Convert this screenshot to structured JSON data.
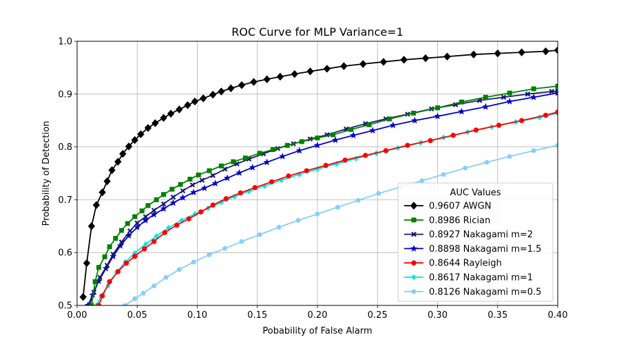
{
  "chart_data": {
    "type": "line",
    "title": "ROC Curve for MLP Variance=1",
    "xlabel": "Pobability of False Alarm",
    "ylabel": "Probability of Detection",
    "xlim": [
      0.0,
      0.4
    ],
    "ylim": [
      0.5,
      1.0
    ],
    "xticks": [
      "0.00",
      "0.05",
      "0.10",
      "0.15",
      "0.20",
      "0.25",
      "0.30",
      "0.35",
      "0.40"
    ],
    "yticks": [
      "0.5",
      "0.6",
      "0.7",
      "0.8",
      "0.9",
      "1.0"
    ],
    "grid": true,
    "legend": {
      "title": "AUC Values",
      "placement": "lower-right"
    },
    "series": [
      {
        "name": "0.9607 AWGN",
        "color": "#000000",
        "marker": "diamond",
        "points": [
          [
            0.005,
            0.516
          ],
          [
            0.008,
            0.58
          ],
          [
            0.012,
            0.65
          ],
          [
            0.016,
            0.69
          ],
          [
            0.021,
            0.714
          ],
          [
            0.025,
            0.735
          ],
          [
            0.029,
            0.756
          ],
          [
            0.034,
            0.772
          ],
          [
            0.038,
            0.787
          ],
          [
            0.043,
            0.801
          ],
          [
            0.048,
            0.813
          ],
          [
            0.053,
            0.824
          ],
          [
            0.059,
            0.836
          ],
          [
            0.065,
            0.845
          ],
          [
            0.072,
            0.855
          ],
          [
            0.078,
            0.863
          ],
          [
            0.085,
            0.871
          ],
          [
            0.092,
            0.879
          ],
          [
            0.098,
            0.886
          ],
          [
            0.105,
            0.892
          ],
          [
            0.113,
            0.899
          ],
          [
            0.12,
            0.905
          ],
          [
            0.128,
            0.911
          ],
          [
            0.137,
            0.917
          ],
          [
            0.147,
            0.923
          ],
          [
            0.158,
            0.928
          ],
          [
            0.169,
            0.933
          ],
          [
            0.181,
            0.938
          ],
          [
            0.194,
            0.943
          ],
          [
            0.208,
            0.948
          ],
          [
            0.222,
            0.953
          ],
          [
            0.238,
            0.957
          ],
          [
            0.255,
            0.961
          ],
          [
            0.272,
            0.965
          ],
          [
            0.29,
            0.968
          ],
          [
            0.308,
            0.971
          ],
          [
            0.33,
            0.975
          ],
          [
            0.35,
            0.977
          ],
          [
            0.37,
            0.979
          ],
          [
            0.39,
            0.981
          ],
          [
            0.4,
            0.983
          ]
        ]
      },
      {
        "name": "0.8986 Rician",
        "color": "#008000",
        "marker": "square",
        "points": [
          [
            0.012,
            0.5
          ],
          [
            0.015,
            0.545
          ],
          [
            0.018,
            0.572
          ],
          [
            0.023,
            0.592
          ],
          [
            0.027,
            0.611
          ],
          [
            0.032,
            0.627
          ],
          [
            0.037,
            0.642
          ],
          [
            0.042,
            0.655
          ],
          [
            0.048,
            0.668
          ],
          [
            0.054,
            0.679
          ],
          [
            0.059,
            0.689
          ],
          [
            0.066,
            0.7
          ],
          [
            0.072,
            0.71
          ],
          [
            0.079,
            0.72
          ],
          [
            0.086,
            0.729
          ],
          [
            0.094,
            0.739
          ],
          [
            0.101,
            0.747
          ],
          [
            0.11,
            0.755
          ],
          [
            0.12,
            0.764
          ],
          [
            0.13,
            0.772
          ],
          [
            0.14,
            0.779
          ],
          [
            0.152,
            0.788
          ],
          [
            0.163,
            0.795
          ],
          [
            0.175,
            0.803
          ],
          [
            0.187,
            0.81
          ],
          [
            0.2,
            0.817
          ],
          [
            0.213,
            0.823
          ],
          [
            0.228,
            0.833
          ],
          [
            0.243,
            0.842
          ],
          [
            0.26,
            0.853
          ],
          [
            0.28,
            0.864
          ],
          [
            0.3,
            0.874
          ],
          [
            0.32,
            0.885
          ],
          [
            0.34,
            0.894
          ],
          [
            0.36,
            0.902
          ],
          [
            0.38,
            0.91
          ],
          [
            0.4,
            0.915
          ]
        ]
      },
      {
        "name": "0.8927 Nakagami m=2",
        "color": "#191970",
        "marker": "x",
        "points": [
          [
            0.01,
            0.5
          ],
          [
            0.014,
            0.525
          ],
          [
            0.019,
            0.553
          ],
          [
            0.025,
            0.576
          ],
          [
            0.03,
            0.597
          ],
          [
            0.037,
            0.62
          ],
          [
            0.044,
            0.641
          ],
          [
            0.05,
            0.656
          ],
          [
            0.057,
            0.668
          ],
          [
            0.064,
            0.68
          ],
          [
            0.072,
            0.692
          ],
          [
            0.08,
            0.705
          ],
          [
            0.088,
            0.717
          ],
          [
            0.096,
            0.728
          ],
          [
            0.104,
            0.737
          ],
          [
            0.113,
            0.746
          ],
          [
            0.123,
            0.758
          ],
          [
            0.133,
            0.768
          ],
          [
            0.143,
            0.777
          ],
          [
            0.155,
            0.787
          ],
          [
            0.167,
            0.797
          ],
          [
            0.18,
            0.806
          ],
          [
            0.194,
            0.815
          ],
          [
            0.208,
            0.823
          ],
          [
            0.224,
            0.834
          ],
          [
            0.24,
            0.844
          ],
          [
            0.257,
            0.853
          ],
          [
            0.275,
            0.862
          ],
          [
            0.295,
            0.872
          ],
          [
            0.315,
            0.88
          ],
          [
            0.335,
            0.888
          ],
          [
            0.355,
            0.894
          ],
          [
            0.375,
            0.9
          ],
          [
            0.395,
            0.905
          ],
          [
            0.4,
            0.906
          ]
        ]
      },
      {
        "name": "0.8898 Nakagami m=1.5",
        "color": "#0000cd",
        "marker": "star",
        "points": [
          [
            0.009,
            0.5
          ],
          [
            0.013,
            0.52
          ],
          [
            0.018,
            0.546
          ],
          [
            0.024,
            0.57
          ],
          [
            0.03,
            0.593
          ],
          [
            0.036,
            0.613
          ],
          [
            0.043,
            0.632
          ],
          [
            0.05,
            0.648
          ],
          [
            0.057,
            0.661
          ],
          [
            0.064,
            0.672
          ],
          [
            0.072,
            0.683
          ],
          [
            0.08,
            0.694
          ],
          [
            0.088,
            0.704
          ],
          [
            0.097,
            0.714
          ],
          [
            0.106,
            0.722
          ],
          [
            0.115,
            0.731
          ],
          [
            0.125,
            0.741
          ],
          [
            0.135,
            0.751
          ],
          [
            0.146,
            0.761
          ],
          [
            0.158,
            0.771
          ],
          [
            0.171,
            0.782
          ],
          [
            0.185,
            0.793
          ],
          [
            0.2,
            0.803
          ],
          [
            0.215,
            0.813
          ],
          [
            0.23,
            0.822
          ],
          [
            0.246,
            0.831
          ],
          [
            0.263,
            0.841
          ],
          [
            0.281,
            0.85
          ],
          [
            0.3,
            0.858
          ],
          [
            0.32,
            0.867
          ],
          [
            0.34,
            0.876
          ],
          [
            0.36,
            0.886
          ],
          [
            0.38,
            0.894
          ],
          [
            0.4,
            0.902
          ]
        ]
      },
      {
        "name": "0.8644 Rayleigh",
        "color": "#ff0000",
        "marker": "circle",
        "points": [
          [
            0.018,
            0.5
          ],
          [
            0.021,
            0.518
          ],
          [
            0.027,
            0.545
          ],
          [
            0.034,
            0.564
          ],
          [
            0.041,
            0.58
          ],
          [
            0.048,
            0.593
          ],
          [
            0.056,
            0.607
          ],
          [
            0.064,
            0.621
          ],
          [
            0.073,
            0.638
          ],
          [
            0.083,
            0.652
          ],
          [
            0.093,
            0.664
          ],
          [
            0.103,
            0.677
          ],
          [
            0.113,
            0.69
          ],
          [
            0.124,
            0.702
          ],
          [
            0.136,
            0.713
          ],
          [
            0.148,
            0.723
          ],
          [
            0.162,
            0.734
          ],
          [
            0.176,
            0.745
          ],
          [
            0.191,
            0.755
          ],
          [
            0.207,
            0.765
          ],
          [
            0.223,
            0.775
          ],
          [
            0.24,
            0.784
          ],
          [
            0.257,
            0.793
          ],
          [
            0.275,
            0.803
          ],
          [
            0.294,
            0.812
          ],
          [
            0.313,
            0.822
          ],
          [
            0.332,
            0.832
          ],
          [
            0.351,
            0.841
          ],
          [
            0.37,
            0.85
          ],
          [
            0.39,
            0.86
          ],
          [
            0.4,
            0.866
          ]
        ]
      },
      {
        "name": "0.8617 Nakagami m=1",
        "color": "#00e5e5",
        "marker": "diamond-small",
        "points": [
          [
            0.016,
            0.5
          ],
          [
            0.02,
            0.518
          ],
          [
            0.026,
            0.538
          ],
          [
            0.033,
            0.563
          ],
          [
            0.04,
            0.582
          ],
          [
            0.048,
            0.599
          ],
          [
            0.057,
            0.616
          ],
          [
            0.066,
            0.631
          ],
          [
            0.076,
            0.647
          ],
          [
            0.087,
            0.661
          ],
          [
            0.098,
            0.673
          ],
          [
            0.109,
            0.684
          ],
          [
            0.12,
            0.695
          ],
          [
            0.131,
            0.706
          ],
          [
            0.143,
            0.716
          ],
          [
            0.156,
            0.726
          ],
          [
            0.17,
            0.737
          ],
          [
            0.185,
            0.748
          ],
          [
            0.2,
            0.758
          ],
          [
            0.216,
            0.768
          ],
          [
            0.232,
            0.778
          ],
          [
            0.249,
            0.788
          ],
          [
            0.267,
            0.798
          ],
          [
            0.286,
            0.808
          ],
          [
            0.305,
            0.818
          ],
          [
            0.325,
            0.828
          ],
          [
            0.345,
            0.838
          ],
          [
            0.365,
            0.847
          ],
          [
            0.385,
            0.856
          ],
          [
            0.4,
            0.864
          ]
        ]
      },
      {
        "name": "0.8126 Nakagami m=0.5",
        "color": "#87cefa",
        "marker": "pentagon",
        "points": [
          [
            0.04,
            0.5
          ],
          [
            0.048,
            0.513
          ],
          [
            0.055,
            0.523
          ],
          [
            0.064,
            0.537
          ],
          [
            0.074,
            0.553
          ],
          [
            0.085,
            0.568
          ],
          [
            0.097,
            0.582
          ],
          [
            0.11,
            0.596
          ],
          [
            0.123,
            0.608
          ],
          [
            0.137,
            0.621
          ],
          [
            0.152,
            0.634
          ],
          [
            0.168,
            0.648
          ],
          [
            0.184,
            0.661
          ],
          [
            0.2,
            0.673
          ],
          [
            0.217,
            0.686
          ],
          [
            0.234,
            0.699
          ],
          [
            0.251,
            0.712
          ],
          [
            0.269,
            0.724
          ],
          [
            0.287,
            0.736
          ],
          [
            0.305,
            0.748
          ],
          [
            0.323,
            0.76
          ],
          [
            0.341,
            0.771
          ],
          [
            0.36,
            0.782
          ],
          [
            0.38,
            0.793
          ],
          [
            0.4,
            0.803
          ]
        ]
      }
    ]
  }
}
